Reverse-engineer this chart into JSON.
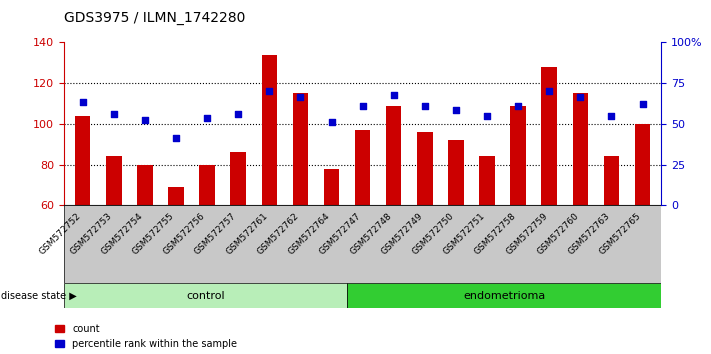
{
  "title": "GDS3975 / ILMN_1742280",
  "samples": [
    "GSM572752",
    "GSM572753",
    "GSM572754",
    "GSM572755",
    "GSM572756",
    "GSM572757",
    "GSM572761",
    "GSM572762",
    "GSM572764",
    "GSM572747",
    "GSM572748",
    "GSM572749",
    "GSM572750",
    "GSM572751",
    "GSM572758",
    "GSM572759",
    "GSM572760",
    "GSM572763",
    "GSM572765"
  ],
  "bar_values": [
    104,
    84,
    80,
    69,
    80,
    86,
    134,
    115,
    78,
    97,
    109,
    96,
    92,
    84,
    109,
    128,
    115,
    84,
    100
  ],
  "blue_values": [
    111,
    105,
    102,
    93,
    103,
    105,
    116,
    113,
    101,
    109,
    114,
    109,
    107,
    104,
    109,
    116,
    113,
    104,
    110
  ],
  "control_count": 9,
  "endometrioma_count": 10,
  "ylim_left": [
    60,
    140
  ],
  "ylim_right": [
    0,
    100
  ],
  "yticks_left": [
    60,
    80,
    100,
    120,
    140
  ],
  "yticks_right": [
    0,
    25,
    50,
    75,
    100
  ],
  "ytick_labels_right": [
    "0",
    "25",
    "50",
    "75",
    "100%"
  ],
  "bar_color": "#CC0000",
  "blue_color": "#0000CC",
  "tick_label_area_color": "#C8C8C8",
  "control_color": "#B8EEB8",
  "endometrioma_color": "#32CD32",
  "legend_bar_label": "count",
  "legend_blue_label": "percentile rank within the sample",
  "disease_state_label": "disease state",
  "control_label": "control",
  "endometrioma_label": "endometrioma"
}
